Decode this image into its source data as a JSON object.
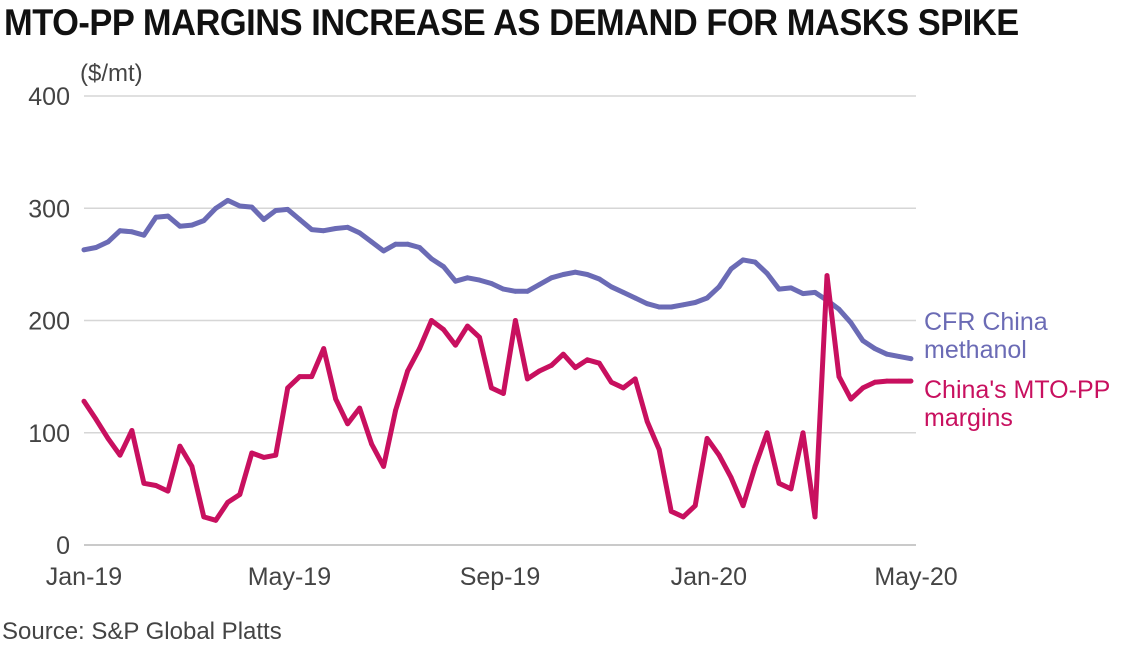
{
  "chart_data": {
    "type": "line",
    "title": "MTO-PP MARGINS INCREASE AS DEMAND FOR MASKS SPIKE",
    "ylabel": "($/mt)",
    "source": "Source: S&P Global Platts",
    "ylim": [
      0,
      400
    ],
    "yticks": [
      "0",
      "100",
      "200",
      "300",
      "400"
    ],
    "xlim": [
      "2019-01-01",
      "2020-05-01"
    ],
    "xticks": [
      {
        "label": "Jan-19",
        "date": "2019-01-01"
      },
      {
        "label": "May-19",
        "date": "2019-05-01"
      },
      {
        "label": "Sep-19",
        "date": "2019-09-01"
      },
      {
        "label": "Jan-20",
        "date": "2020-01-01"
      },
      {
        "label": "May-20",
        "date": "2020-05-01"
      }
    ],
    "grid": true,
    "colors": {
      "methanol": "#6b6bb5",
      "margins": "#c8105f",
      "grid": "#d6d6d6"
    },
    "series": [
      {
        "name": "CFR China methanol",
        "label_lines": [
          "CFR China",
          "methanol"
        ],
        "x": [
          "2019-01-01",
          "2019-01-08",
          "2019-01-15",
          "2019-01-22",
          "2019-01-29",
          "2019-02-05",
          "2019-02-12",
          "2019-02-19",
          "2019-02-26",
          "2019-03-05",
          "2019-03-12",
          "2019-03-19",
          "2019-03-26",
          "2019-04-02",
          "2019-04-09",
          "2019-04-16",
          "2019-04-23",
          "2019-04-30",
          "2019-05-07",
          "2019-05-14",
          "2019-05-21",
          "2019-05-28",
          "2019-06-04",
          "2019-06-11",
          "2019-06-18",
          "2019-06-25",
          "2019-07-02",
          "2019-07-09",
          "2019-07-16",
          "2019-07-23",
          "2019-07-30",
          "2019-08-06",
          "2019-08-13",
          "2019-08-20",
          "2019-08-27",
          "2019-09-03",
          "2019-09-10",
          "2019-09-17",
          "2019-09-24",
          "2019-10-01",
          "2019-10-08",
          "2019-10-15",
          "2019-10-22",
          "2019-10-29",
          "2019-11-05",
          "2019-11-12",
          "2019-11-19",
          "2019-11-26",
          "2019-12-03",
          "2019-12-10",
          "2019-12-17",
          "2019-12-24",
          "2019-12-31",
          "2020-01-07",
          "2020-01-14",
          "2020-01-21",
          "2020-01-28",
          "2020-02-04",
          "2020-02-11",
          "2020-02-18",
          "2020-02-25",
          "2020-03-03",
          "2020-03-10",
          "2020-03-17",
          "2020-03-24",
          "2020-03-31",
          "2020-04-07",
          "2020-04-14",
          "2020-04-21",
          "2020-04-28"
        ],
        "values": [
          263,
          265,
          270,
          280,
          279,
          276,
          292,
          293,
          284,
          285,
          289,
          300,
          307,
          302,
          301,
          290,
          298,
          299,
          290,
          281,
          280,
          282,
          283,
          278,
          270,
          262,
          268,
          268,
          265,
          255,
          248,
          235,
          238,
          236,
          233,
          228,
          226,
          226,
          232,
          238,
          241,
          243,
          241,
          237,
          230,
          225,
          220,
          215,
          212,
          212,
          214,
          216,
          220,
          230,
          246,
          254,
          252,
          242,
          228,
          229,
          224,
          225,
          218,
          210,
          198,
          182,
          175,
          170,
          168,
          166
        ]
      },
      {
        "name": "China's MTO-PP margins",
        "label_lines": [
          "China's MTO-PP",
          "margins"
        ],
        "x": [
          "2019-01-01",
          "2019-01-08",
          "2019-01-15",
          "2019-01-22",
          "2019-01-29",
          "2019-02-05",
          "2019-02-12",
          "2019-02-19",
          "2019-02-26",
          "2019-03-05",
          "2019-03-12",
          "2019-03-19",
          "2019-03-26",
          "2019-04-02",
          "2019-04-09",
          "2019-04-16",
          "2019-04-23",
          "2019-04-30",
          "2019-05-07",
          "2019-05-14",
          "2019-05-21",
          "2019-05-28",
          "2019-06-04",
          "2019-06-11",
          "2019-06-18",
          "2019-06-25",
          "2019-07-02",
          "2019-07-09",
          "2019-07-16",
          "2019-07-23",
          "2019-07-30",
          "2019-08-06",
          "2019-08-13",
          "2019-08-20",
          "2019-08-27",
          "2019-09-03",
          "2019-09-10",
          "2019-09-17",
          "2019-09-24",
          "2019-10-01",
          "2019-10-08",
          "2019-10-15",
          "2019-10-22",
          "2019-10-29",
          "2019-11-05",
          "2019-11-12",
          "2019-11-19",
          "2019-11-26",
          "2019-12-03",
          "2019-12-10",
          "2019-12-17",
          "2019-12-24",
          "2019-12-31",
          "2020-01-07",
          "2020-01-14",
          "2020-01-21",
          "2020-01-28",
          "2020-02-04",
          "2020-02-11",
          "2020-02-18",
          "2020-02-25",
          "2020-03-03",
          "2020-03-10",
          "2020-03-17",
          "2020-03-24",
          "2020-03-31",
          "2020-04-07",
          "2020-04-14",
          "2020-04-21",
          "2020-04-28"
        ],
        "values": [
          128,
          112,
          95,
          80,
          102,
          55,
          53,
          48,
          88,
          70,
          25,
          22,
          38,
          45,
          82,
          78,
          80,
          140,
          150,
          150,
          175,
          130,
          108,
          122,
          90,
          70,
          120,
          155,
          175,
          200,
          192,
          178,
          195,
          185,
          140,
          135,
          200,
          148,
          155,
          160,
          170,
          158,
          165,
          162,
          145,
          140,
          148,
          110,
          85,
          30,
          25,
          35,
          95,
          80,
          60,
          35,
          70,
          100,
          55,
          50,
          100,
          25,
          240,
          150,
          130,
          140,
          145,
          146,
          146,
          146
        ]
      }
    ]
  }
}
